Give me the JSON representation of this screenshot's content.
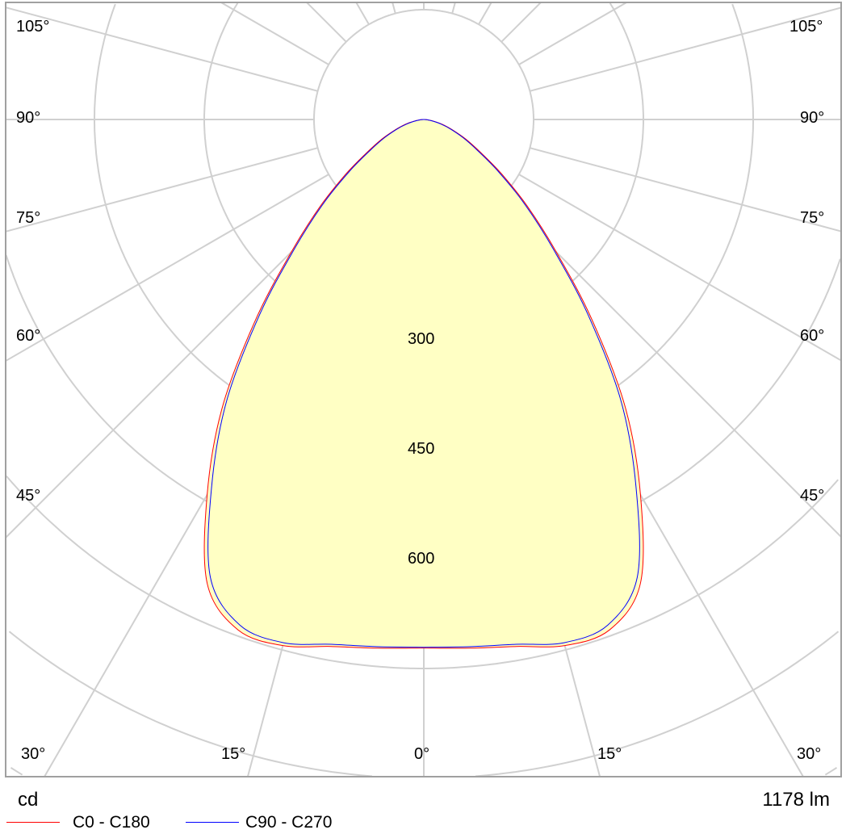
{
  "chart_data": {
    "type": "polar",
    "unit_label": "cd",
    "flux_label": "1178 lm",
    "radial_tick_labels": [
      "300",
      "450",
      "600"
    ],
    "radial_step": 150,
    "angle_labels_left": [
      "105°",
      "90°",
      "75°",
      "60°",
      "45°",
      "30°",
      "15°"
    ],
    "angle_labels_right": [
      "105°",
      "90°",
      "75°",
      "60°",
      "45°",
      "30°",
      "15°"
    ],
    "angle_label_zero": "0°",
    "grid": true,
    "fill_color": "#ffffc4",
    "gamma": [
      0,
      5,
      10,
      15,
      20,
      25,
      30,
      35,
      40,
      45,
      50,
      55,
      60,
      65,
      70,
      75,
      80,
      85,
      90
    ],
    "series": [
      {
        "name": "C0 - C180",
        "color": "#ff0000",
        "values": [
          722,
          725,
          731,
          744,
          742,
          700,
          592,
          480,
          358,
          256,
          185,
          130,
          89,
          63,
          42,
          27,
          14,
          5,
          0
        ]
      },
      {
        "name": "C90 - C270",
        "color": "#0000ff",
        "values": [
          721,
          723,
          728,
          740,
          735,
          690,
          580,
          470,
          350,
          250,
          180,
          125,
          85,
          60,
          40,
          25,
          12,
          4,
          0
        ]
      }
    ]
  }
}
